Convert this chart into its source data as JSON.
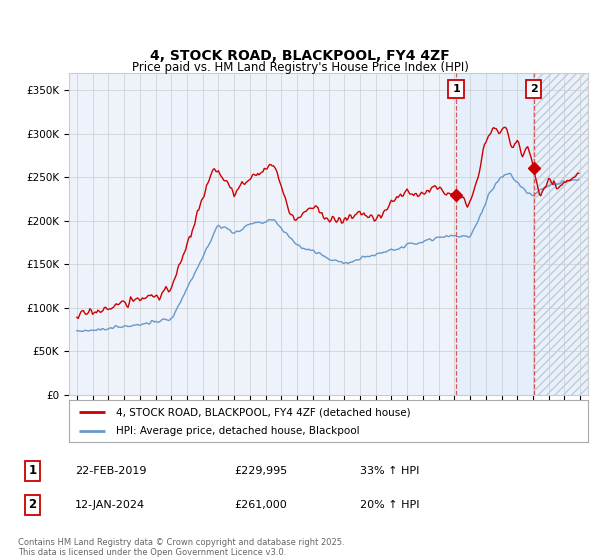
{
  "title": "4, STOCK ROAD, BLACKPOOL, FY4 4ZF",
  "subtitle": "Price paid vs. HM Land Registry's House Price Index (HPI)",
  "ylabel_ticks": [
    "£0",
    "£50K",
    "£100K",
    "£150K",
    "£200K",
    "£250K",
    "£300K",
    "£350K"
  ],
  "ytick_values": [
    0,
    50000,
    100000,
    150000,
    200000,
    250000,
    300000,
    350000
  ],
  "ylim": [
    0,
    370000
  ],
  "xlim_start": 1994.5,
  "xlim_end": 2027.5,
  "red_line_color": "#cc0000",
  "blue_line_color": "#6699cc",
  "marker1_x": 2019.12,
  "marker1_y": 229995,
  "marker2_x": 2024.04,
  "marker2_y": 261000,
  "vline1_x": 2019.12,
  "vline2_x": 2024.04,
  "shade_between_color": "#ddeeff",
  "shade_after_color": "#ddeeff",
  "legend_red_label": "4, STOCK ROAD, BLACKPOOL, FY4 4ZF (detached house)",
  "legend_blue_label": "HPI: Average price, detached house, Blackpool",
  "sale1_label": "1",
  "sale1_date": "22-FEB-2019",
  "sale1_price": "£229,995",
  "sale1_hpi": "33% ↑ HPI",
  "sale2_label": "2",
  "sale2_date": "12-JAN-2024",
  "sale2_price": "£261,000",
  "sale2_hpi": "20% ↑ HPI",
  "footer": "Contains HM Land Registry data © Crown copyright and database right 2025.\nThis data is licensed under the Open Government Licence v3.0.",
  "bg_color": "#ffffff",
  "plot_bg_color": "#eef2fa",
  "grid_color": "#cccccc"
}
